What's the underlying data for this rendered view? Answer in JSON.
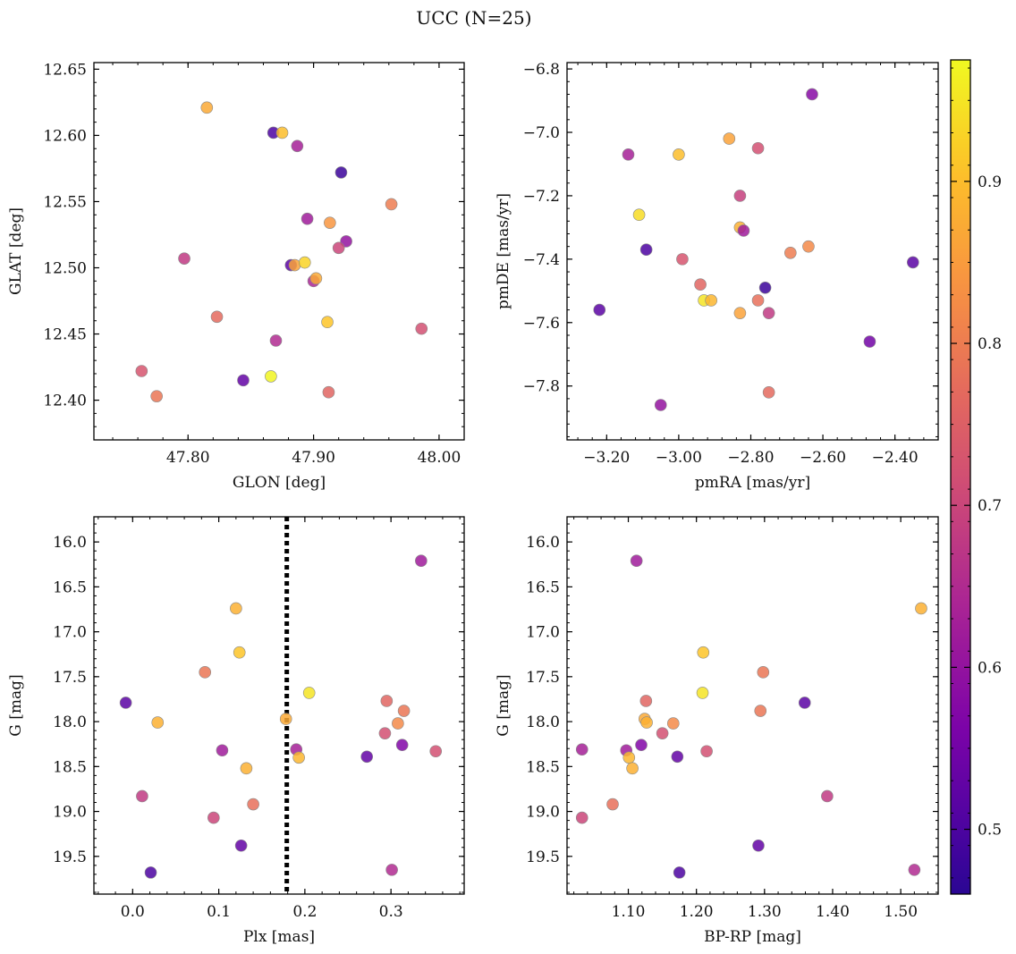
{
  "figure_title": "UCC (N=25)",
  "colorbar": {
    "range": [
      0.46,
      0.975
    ],
    "ticks": [
      0.5,
      0.6,
      0.7,
      0.8,
      0.9
    ],
    "colormap": "plasma"
  },
  "chart_data": [
    {
      "type": "scatter",
      "xlabel": "GLON [deg]",
      "ylabel": "GLAT [deg]",
      "xlim": [
        47.725,
        48.02
      ],
      "ylim": [
        12.37,
        12.655
      ],
      "xticks": [
        47.8,
        47.9,
        48.0
      ],
      "yticks": [
        12.4,
        12.45,
        12.5,
        12.55,
        12.6,
        12.65
      ],
      "invert_y": false,
      "points": [
        {
          "x": 47.815,
          "y": 12.621,
          "c": 0.87
        },
        {
          "x": 47.868,
          "y": 12.602,
          "c": 0.5
        },
        {
          "x": 47.875,
          "y": 12.602,
          "c": 0.9
        },
        {
          "x": 47.887,
          "y": 12.592,
          "c": 0.63
        },
        {
          "x": 47.922,
          "y": 12.572,
          "c": 0.48
        },
        {
          "x": 47.962,
          "y": 12.548,
          "c": 0.8
        },
        {
          "x": 47.895,
          "y": 12.537,
          "c": 0.62
        },
        {
          "x": 47.913,
          "y": 12.534,
          "c": 0.84
        },
        {
          "x": 47.926,
          "y": 12.52,
          "c": 0.6
        },
        {
          "x": 47.92,
          "y": 12.515,
          "c": 0.7
        },
        {
          "x": 47.797,
          "y": 12.507,
          "c": 0.68
        },
        {
          "x": 47.882,
          "y": 12.502,
          "c": 0.52
        },
        {
          "x": 47.885,
          "y": 12.502,
          "c": 0.86
        },
        {
          "x": 47.893,
          "y": 12.504,
          "c": 0.93
        },
        {
          "x": 47.9,
          "y": 12.49,
          "c": 0.64
        },
        {
          "x": 47.902,
          "y": 12.492,
          "c": 0.87
        },
        {
          "x": 47.823,
          "y": 12.463,
          "c": 0.77
        },
        {
          "x": 47.911,
          "y": 12.459,
          "c": 0.91
        },
        {
          "x": 47.986,
          "y": 12.454,
          "c": 0.72
        },
        {
          "x": 47.87,
          "y": 12.445,
          "c": 0.65
        },
        {
          "x": 47.763,
          "y": 12.422,
          "c": 0.73
        },
        {
          "x": 47.866,
          "y": 12.418,
          "c": 0.97
        },
        {
          "x": 47.844,
          "y": 12.415,
          "c": 0.53
        },
        {
          "x": 47.775,
          "y": 12.403,
          "c": 0.79
        },
        {
          "x": 47.912,
          "y": 12.406,
          "c": 0.76
        }
      ]
    },
    {
      "type": "scatter",
      "xlabel": "pmRA [mas/yr]",
      "ylabel": "pmDE [mas/yr]",
      "xlim": [
        -3.31,
        -2.28
      ],
      "ylim": [
        -7.97,
        -6.78
      ],
      "xticks": [
        -3.2,
        -3.0,
        -2.8,
        -2.6,
        -2.4
      ],
      "yticks": [
        -7.8,
        -7.6,
        -7.4,
        -7.2,
        -7.0,
        -6.8
      ],
      "invert_y": false,
      "points": [
        {
          "x": -2.63,
          "y": -6.88,
          "c": 0.58
        },
        {
          "x": -3.14,
          "y": -7.07,
          "c": 0.63
        },
        {
          "x": -2.86,
          "y": -7.02,
          "c": 0.86
        },
        {
          "x": -3.0,
          "y": -7.07,
          "c": 0.9
        },
        {
          "x": -2.78,
          "y": -7.05,
          "c": 0.72
        },
        {
          "x": -2.83,
          "y": -7.2,
          "c": 0.69
        },
        {
          "x": -3.11,
          "y": -7.26,
          "c": 0.94
        },
        {
          "x": -2.83,
          "y": -7.3,
          "c": 0.88
        },
        {
          "x": -2.82,
          "y": -7.31,
          "c": 0.62
        },
        {
          "x": -2.64,
          "y": -7.36,
          "c": 0.82
        },
        {
          "x": -2.69,
          "y": -7.38,
          "c": 0.8
        },
        {
          "x": -3.09,
          "y": -7.37,
          "c": 0.5
        },
        {
          "x": -2.99,
          "y": -7.4,
          "c": 0.73
        },
        {
          "x": -2.35,
          "y": -7.41,
          "c": 0.52
        },
        {
          "x": -2.94,
          "y": -7.48,
          "c": 0.76
        },
        {
          "x": -2.76,
          "y": -7.49,
          "c": 0.48
        },
        {
          "x": -2.93,
          "y": -7.53,
          "c": 0.95
        },
        {
          "x": -2.91,
          "y": -7.53,
          "c": 0.89
        },
        {
          "x": -2.78,
          "y": -7.53,
          "c": 0.78
        },
        {
          "x": -3.22,
          "y": -7.56,
          "c": 0.52
        },
        {
          "x": -2.75,
          "y": -7.57,
          "c": 0.68
        },
        {
          "x": -2.83,
          "y": -7.57,
          "c": 0.86
        },
        {
          "x": -2.47,
          "y": -7.66,
          "c": 0.55
        },
        {
          "x": -2.75,
          "y": -7.82,
          "c": 0.77
        },
        {
          "x": -3.05,
          "y": -7.86,
          "c": 0.6
        }
      ]
    },
    {
      "type": "scatter",
      "xlabel": "Plx [mas]",
      "ylabel": "G [mag]",
      "xlim": [
        -0.045,
        0.385
      ],
      "ylim": [
        19.92,
        15.72
      ],
      "xticks": [
        0.0,
        0.1,
        0.2,
        0.3
      ],
      "yticks": [
        16.0,
        16.5,
        17.0,
        17.5,
        18.0,
        18.5,
        19.0,
        19.5
      ],
      "invert_y": true,
      "vline": {
        "x": 0.179,
        "style": "dotted",
        "color": "#000000"
      },
      "points": [
        {
          "x": 0.335,
          "y": 16.21,
          "c": 0.62
        },
        {
          "x": 0.12,
          "y": 16.74,
          "c": 0.88
        },
        {
          "x": 0.124,
          "y": 17.23,
          "c": 0.91
        },
        {
          "x": 0.084,
          "y": 17.45,
          "c": 0.79
        },
        {
          "x": 0.205,
          "y": 17.68,
          "c": 0.95
        },
        {
          "x": -0.008,
          "y": 17.79,
          "c": 0.52
        },
        {
          "x": 0.295,
          "y": 17.77,
          "c": 0.76
        },
        {
          "x": 0.315,
          "y": 17.88,
          "c": 0.79
        },
        {
          "x": 0.029,
          "y": 18.01,
          "c": 0.88
        },
        {
          "x": 0.178,
          "y": 17.97,
          "c": 0.87
        },
        {
          "x": 0.308,
          "y": 18.02,
          "c": 0.82
        },
        {
          "x": 0.293,
          "y": 18.13,
          "c": 0.72
        },
        {
          "x": 0.313,
          "y": 18.26,
          "c": 0.57
        },
        {
          "x": 0.19,
          "y": 18.31,
          "c": 0.63
        },
        {
          "x": 0.104,
          "y": 18.32,
          "c": 0.62
        },
        {
          "x": 0.352,
          "y": 18.33,
          "c": 0.72
        },
        {
          "x": 0.193,
          "y": 18.4,
          "c": 0.89
        },
        {
          "x": 0.272,
          "y": 18.39,
          "c": 0.53
        },
        {
          "x": 0.132,
          "y": 18.52,
          "c": 0.88
        },
        {
          "x": 0.011,
          "y": 18.83,
          "c": 0.68
        },
        {
          "x": 0.14,
          "y": 18.92,
          "c": 0.78
        },
        {
          "x": 0.094,
          "y": 19.07,
          "c": 0.7
        },
        {
          "x": 0.126,
          "y": 19.38,
          "c": 0.53
        },
        {
          "x": 0.021,
          "y": 19.68,
          "c": 0.5
        },
        {
          "x": 0.301,
          "y": 19.65,
          "c": 0.65
        }
      ]
    },
    {
      "type": "scatter",
      "xlabel": "BP-RP [mag]",
      "ylabel": "G [mag]",
      "xlim": [
        1.01,
        1.555
      ],
      "ylim": [
        19.92,
        15.72
      ],
      "xticks": [
        1.1,
        1.2,
        1.3,
        1.4,
        1.5
      ],
      "yticks": [
        16.0,
        16.5,
        17.0,
        17.5,
        18.0,
        18.5,
        19.0,
        19.5
      ],
      "invert_y": true,
      "points": [
        {
          "x": 1.112,
          "y": 16.21,
          "c": 0.62
        },
        {
          "x": 1.53,
          "y": 16.74,
          "c": 0.88
        },
        {
          "x": 1.21,
          "y": 17.23,
          "c": 0.91
        },
        {
          "x": 1.298,
          "y": 17.45,
          "c": 0.79
        },
        {
          "x": 1.209,
          "y": 17.68,
          "c": 0.95
        },
        {
          "x": 1.359,
          "y": 17.79,
          "c": 0.52
        },
        {
          "x": 1.126,
          "y": 17.77,
          "c": 0.76
        },
        {
          "x": 1.294,
          "y": 17.88,
          "c": 0.79
        },
        {
          "x": 1.124,
          "y": 17.97,
          "c": 0.87
        },
        {
          "x": 1.127,
          "y": 18.01,
          "c": 0.88
        },
        {
          "x": 1.166,
          "y": 18.02,
          "c": 0.82
        },
        {
          "x": 1.15,
          "y": 18.13,
          "c": 0.72
        },
        {
          "x": 1.119,
          "y": 18.26,
          "c": 0.57
        },
        {
          "x": 1.032,
          "y": 18.31,
          "c": 0.63
        },
        {
          "x": 1.097,
          "y": 18.32,
          "c": 0.62
        },
        {
          "x": 1.215,
          "y": 18.33,
          "c": 0.72
        },
        {
          "x": 1.101,
          "y": 18.4,
          "c": 0.89
        },
        {
          "x": 1.172,
          "y": 18.39,
          "c": 0.53
        },
        {
          "x": 1.106,
          "y": 18.52,
          "c": 0.88
        },
        {
          "x": 1.392,
          "y": 18.83,
          "c": 0.68
        },
        {
          "x": 1.077,
          "y": 18.92,
          "c": 0.78
        },
        {
          "x": 1.032,
          "y": 19.07,
          "c": 0.7
        },
        {
          "x": 1.291,
          "y": 19.38,
          "c": 0.53
        },
        {
          "x": 1.175,
          "y": 19.68,
          "c": 0.5
        },
        {
          "x": 1.52,
          "y": 19.65,
          "c": 0.65
        }
      ]
    }
  ]
}
